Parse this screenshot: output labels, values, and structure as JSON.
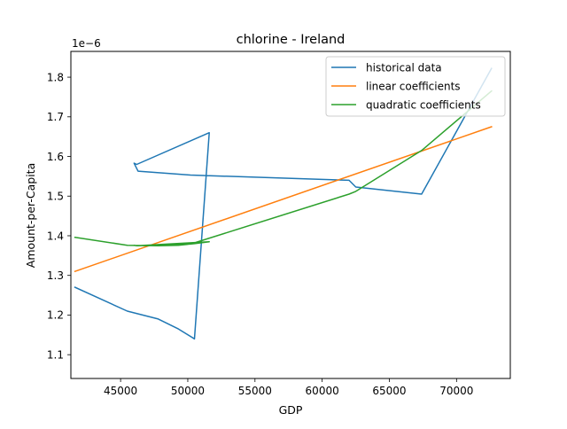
{
  "chart_data": {
    "type": "line",
    "title": "chlorine - Ireland",
    "xlabel": "GDP",
    "ylabel": "Amount-per-Capita",
    "y_offset_label": "1e−6",
    "xlim": [
      41300,
      74000
    ],
    "ylim": [
      1.04,
      1.865
    ],
    "xticks": [
      45000,
      50000,
      55000,
      60000,
      65000,
      70000
    ],
    "xtick_labels": [
      "45000",
      "50000",
      "55000",
      "60000",
      "65000",
      "70000"
    ],
    "yticks": [
      1.1,
      1.2,
      1.3,
      1.4,
      1.5,
      1.6,
      1.7,
      1.8
    ],
    "ytick_labels": [
      "1.1",
      "1.2",
      "1.3",
      "1.4",
      "1.5",
      "1.6",
      "1.7",
      "1.8"
    ],
    "grid": false,
    "legend_position": "top-right",
    "series": [
      {
        "name": "historical data",
        "color": "#1f77b4",
        "x": [
          41600,
          45500,
          47800,
          49300,
          50500,
          51600,
          46200,
          46000,
          46300,
          50200,
          62000,
          62500,
          67400,
          72600
        ],
        "y": [
          1.27,
          1.21,
          1.19,
          1.165,
          1.14,
          1.66,
          1.58,
          1.583,
          1.563,
          1.553,
          1.54,
          1.523,
          1.505,
          1.822
        ]
      },
      {
        "name": "linear coefficients",
        "color": "#ff7f0e",
        "x": [
          41600,
          72600
        ],
        "y": [
          1.31,
          1.675
        ]
      },
      {
        "name": "quadratic coefficients",
        "color": "#2ca02c",
        "x": [
          41600,
          45500,
          47800,
          49300,
          50500,
          51600,
          46200,
          46000,
          46300,
          50200,
          62000,
          62500,
          67400,
          72600
        ],
        "y": [
          1.396,
          1.376,
          1.375,
          1.376,
          1.38,
          1.385,
          1.375,
          1.376,
          1.375,
          1.379,
          1.505,
          1.512,
          1.615,
          1.765
        ]
      }
    ]
  }
}
